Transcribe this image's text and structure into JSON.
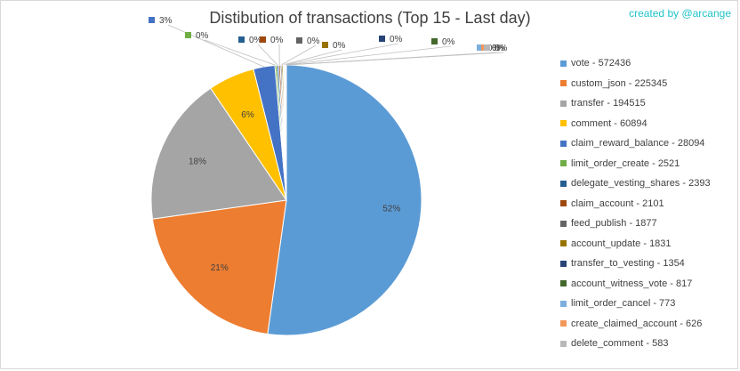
{
  "chart_data": {
    "type": "pie",
    "title": "Distibution of transactions (Top 15 - Last day)",
    "credit": "created by @arcange",
    "legend_position": "right",
    "slices": [
      {
        "label": "vote",
        "legend": "vote - 572436",
        "value": 572436,
        "pct_label": "52%",
        "color": "#5b9bd5"
      },
      {
        "label": "custom_json",
        "legend": "custom_json - 225345",
        "value": 225345,
        "pct_label": "21%",
        "color": "#ed7d31"
      },
      {
        "label": "transfer",
        "legend": "transfer - 194515",
        "value": 194515,
        "pct_label": "18%",
        "color": "#a5a5a5"
      },
      {
        "label": "comment",
        "legend": "comment - 60894",
        "value": 60894,
        "pct_label": "6%",
        "color": "#ffc000"
      },
      {
        "label": "claim_reward_balance",
        "legend": "claim_reward_balance - 28094",
        "value": 28094,
        "pct_label": "3%",
        "color": "#4472c4"
      },
      {
        "label": "limit_order_create",
        "legend": "limit_order_create - 2521",
        "value": 2521,
        "pct_label": "0%",
        "color": "#70ad47"
      },
      {
        "label": "delegate_vesting_shares",
        "legend": "delegate_vesting_shares - 2393",
        "value": 2393,
        "pct_label": "0%",
        "color": "#255e91"
      },
      {
        "label": "claim_account",
        "legend": "claim_account - 2101",
        "value": 2101,
        "pct_label": "0%",
        "color": "#9e480e"
      },
      {
        "label": "feed_publish",
        "legend": "feed_publish - 1877",
        "value": 1877,
        "pct_label": "0%",
        "color": "#636363"
      },
      {
        "label": "account_update",
        "legend": "account_update - 1831",
        "value": 1831,
        "pct_label": "0%",
        "color": "#997300"
      },
      {
        "label": "transfer_to_vesting",
        "legend": "transfer_to_vesting - 1354",
        "value": 1354,
        "pct_label": "0%",
        "color": "#264478"
      },
      {
        "label": "account_witness_vote",
        "legend": "account_witness_vote - 817",
        "value": 817,
        "pct_label": "0%",
        "color": "#43682b"
      },
      {
        "label": "limit_order_cancel",
        "legend": "limit_order_cancel - 773",
        "value": 773,
        "pct_label": "0%",
        "color": "#7cafdd"
      },
      {
        "label": "create_claimed_account",
        "legend": "create_claimed_account - 626",
        "value": 626,
        "pct_label": "0%",
        "color": "#f1975a"
      },
      {
        "label": "delete_comment",
        "legend": "delete_comment - 583",
        "value": 583,
        "pct_label": "0%",
        "color": "#b7b7b7"
      }
    ]
  }
}
